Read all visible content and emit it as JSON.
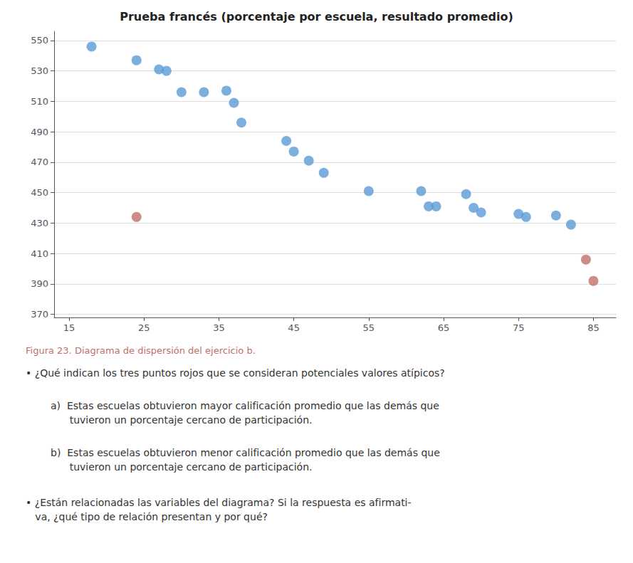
{
  "chart_data": {
    "type": "scatter",
    "title": "Prueba francés (porcentaje por escuela, resultado promedio)",
    "series": [
      {
        "color": "#5b9bd5",
        "values": [
          [
            18,
            546
          ],
          [
            24,
            537
          ],
          [
            27,
            531
          ],
          [
            28,
            530
          ],
          [
            30,
            516
          ],
          [
            33,
            516
          ],
          [
            36,
            517
          ],
          [
            37,
            509
          ],
          [
            38,
            496
          ],
          [
            44,
            484
          ],
          [
            45,
            477
          ],
          [
            47,
            471
          ],
          [
            49,
            463
          ],
          [
            55,
            451
          ],
          [
            62,
            451
          ],
          [
            63,
            441
          ],
          [
            64,
            441
          ],
          [
            68,
            449
          ],
          [
            69,
            440
          ],
          [
            70,
            437
          ],
          [
            75,
            436
          ],
          [
            76,
            434
          ],
          [
            80,
            435
          ],
          [
            82,
            429
          ]
        ]
      },
      {
        "color": "#c0706a",
        "values": [
          [
            24,
            434
          ],
          [
            84,
            406
          ],
          [
            85,
            392
          ]
        ]
      }
    ],
    "xlim": [
      13,
      88
    ],
    "ylim": [
      368,
      556
    ],
    "xticks": [
      15,
      25,
      35,
      45,
      55,
      65,
      75,
      85
    ],
    "yticks": [
      370,
      390,
      410,
      430,
      450,
      470,
      490,
      510,
      530,
      550
    ],
    "grid": true,
    "annotations": [
      {
        "text": "Figura 23. Diagrama de dispersión del ejercicio b.",
        "color": "#c0706a"
      },
      {
        "text": "• ¿Qué indican los tres puntos rojos que se consideran potenciales valores atípicos?"
      },
      {
        "text": "a)  Estas escuelas obtuvieron mayor calificación promedio que las demás que\n      tuvieron un porcentaje cercano de participación."
      },
      {
        "text": "b)  Estas escuelas obtuvieron menor calificación promedio que las demás que\n      tuvieron un porcentaje cercano de participación."
      },
      {
        "text": "• ¿Están relacionadas las variables del diagrama? Si la respuesta es afirmati-\n   va, ¿qué tipo de relación presentan y por qué?"
      }
    ]
  }
}
